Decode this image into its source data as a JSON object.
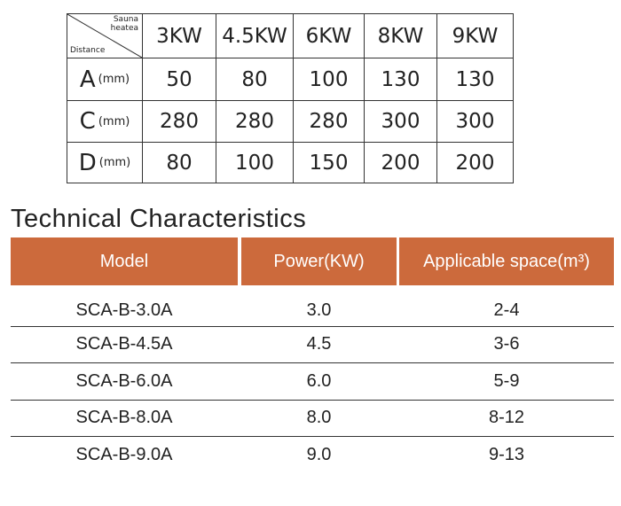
{
  "distance_table": {
    "corner_top": "Sauna heatea",
    "corner_bottom": "Distance",
    "columns": [
      "3KW",
      "4.5KW",
      "6KW",
      "8KW",
      "9KW"
    ],
    "rows": [
      {
        "letter": "A",
        "unit": "(mm)",
        "values": [
          50,
          80,
          100,
          130,
          130
        ]
      },
      {
        "letter": "C",
        "unit": "(mm)",
        "values": [
          280,
          280,
          280,
          300,
          300
        ]
      },
      {
        "letter": "D",
        "unit": "(mm)",
        "values": [
          80,
          100,
          150,
          200,
          200
        ]
      }
    ]
  },
  "tech_title": "Technical Characteristics",
  "tech_table": {
    "header": [
      "Model",
      "Power(KW)",
      "Applicable space(m³)"
    ],
    "rows": [
      [
        "SCA-B-3.0A",
        "3.0",
        "2-4"
      ],
      [
        "SCA-B-4.5A",
        "4.5",
        "3-6"
      ],
      [
        "SCA-B-6.0A",
        "6.0",
        "5-9"
      ],
      [
        "SCA-B-8.0A",
        "8.0",
        "8-12"
      ],
      [
        "SCA-B-9.0A",
        "9.0",
        "9-13"
      ]
    ]
  }
}
